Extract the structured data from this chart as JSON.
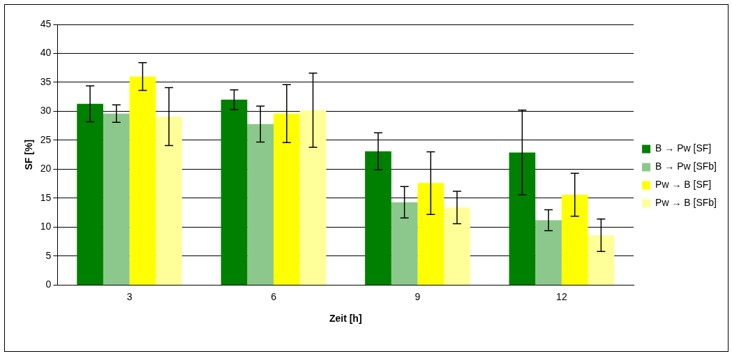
{
  "chart_data": {
    "type": "bar",
    "xlabel": "Zeit [h]",
    "ylabel": "SF [%]",
    "categories": [
      "3",
      "6",
      "9",
      "12"
    ],
    "series": [
      {
        "name": "B → Pw [SF]",
        "color": "#008000",
        "values": [
          31.3,
          32.0,
          23.1,
          22.9
        ],
        "errors": [
          3.1,
          1.7,
          3.2,
          7.3
        ]
      },
      {
        "name": "B → Pw [SFb]",
        "color": "#8cc88c",
        "values": [
          29.6,
          27.8,
          14.3,
          11.2
        ],
        "errors": [
          1.5,
          3.1,
          2.7,
          1.8
        ]
      },
      {
        "name": "Pw → B [SF]",
        "color": "#ffff00",
        "values": [
          36.0,
          29.6,
          17.6,
          15.6
        ],
        "errors": [
          2.4,
          5.0,
          5.4,
          3.7
        ]
      },
      {
        "name": "Pw → B [SFb]",
        "color": "#ffff99",
        "values": [
          29.1,
          30.2,
          13.4,
          8.6
        ],
        "errors": [
          5.0,
          6.4,
          2.8,
          2.8
        ]
      }
    ],
    "ylim": [
      0,
      45
    ],
    "yticks": [
      0,
      5,
      10,
      15,
      20,
      25,
      30,
      35,
      40,
      45
    ],
    "grid": "y",
    "legend": "right"
  }
}
